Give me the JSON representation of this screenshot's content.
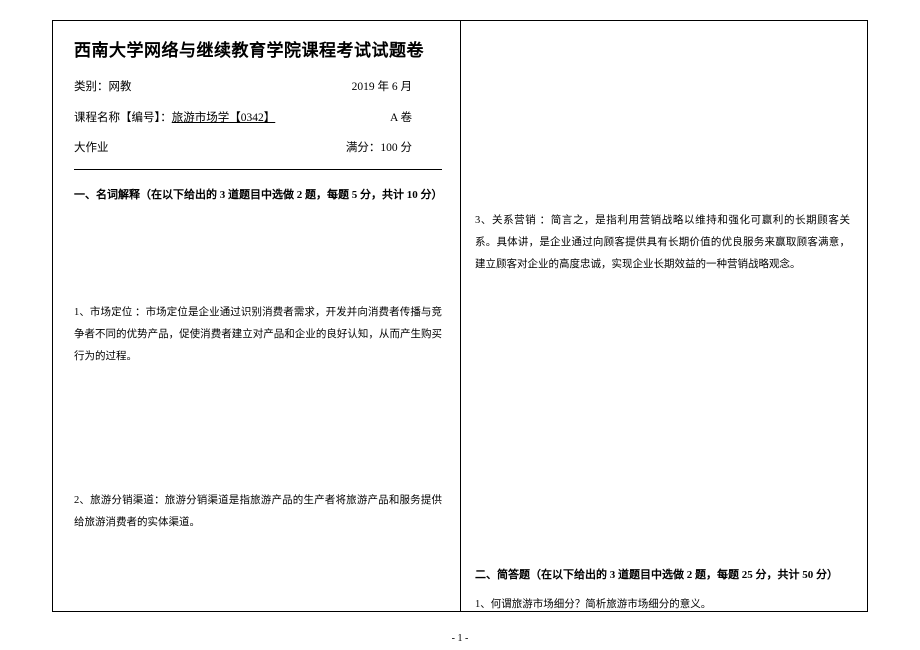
{
  "header": {
    "title": "西南大学网络与继续教育学院课程考试试题卷",
    "category_label": "类别：",
    "category_value": "网教",
    "date": "2019 年 6 月",
    "course_label": "课程名称【编号】：",
    "course_value": "旅游市场学【0342】",
    "paper_version": "A 卷",
    "work_type": "大作业",
    "score_label": "满分：",
    "score_value": "100 分"
  },
  "section1": {
    "heading": "一、名词解释（在以下给出的 3 道题目中选做 2 题，每题 5 分，共计 10 分）",
    "q1": "1、市场定位 ：市场定位是企业通过识别消费者需求，开发并向消费者传播与竞争者不同的优势产品，促使消费者建立对产品和企业的良好认知，从而产生购买行为的过程。",
    "q2": "2、旅游分销渠道：旅游分销渠道是指旅游产品的生产者将旅游产品和服务提供给旅游消费者的实体渠道。",
    "q3": "3、关系营销 ：简言之，是指利用营销战略以维持和强化可赢利的长期顾客关系。具体讲，是企业通过向顾客提供具有长期价值的优良服务来赢取顾客满意，建立顾客对企业的高度忠诚，实现企业长期效益的一种营销战略观念。"
  },
  "section2": {
    "heading": "二、简答题（在以下给出的 3 道题目中选做 2 题，每题 25 分，共计 50 分）",
    "q1": "1、何谓旅游市场细分？简析旅游市场细分的意义。"
  },
  "footer": {
    "page_num": "- 1 -"
  }
}
